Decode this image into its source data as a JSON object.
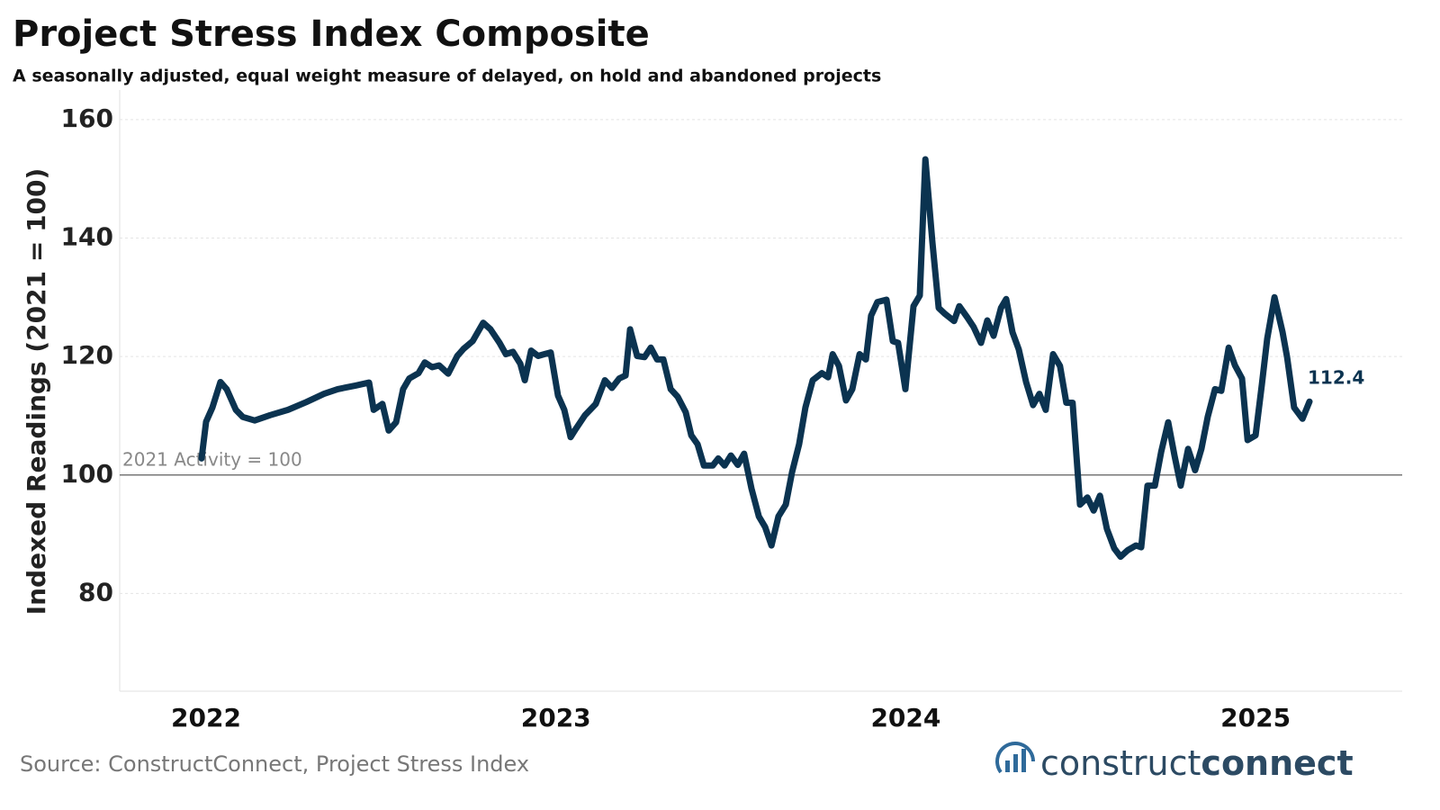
{
  "chart_data": {
    "type": "line",
    "title": "Project Stress Index Composite",
    "subtitle": "A seasonally adjusted, equal weight measure of delayed, on hold and abandoned projects",
    "y_label": "Indexed Readings (2021 = 100)",
    "source": "Source: ConstructConnect, Project Stress Index",
    "logo": {
      "light": "construct",
      "bold": "connect"
    },
    "reference_line": {
      "value": 100,
      "label": "2021 Activity = 100"
    },
    "xlim": [
      2021.753,
      2025.419
    ],
    "xticks": [
      2022,
      2023,
      2024,
      2025
    ],
    "ylim": [
      63.5,
      165
    ],
    "yticks": [
      80,
      100,
      120,
      140,
      160
    ],
    "grid": true,
    "series": [
      {
        "name": "Project Stress Index",
        "color": "#0b3350",
        "x": [
          2021.987,
          2022.0,
          2022.018,
          2022.041,
          2022.059,
          2022.085,
          2022.105,
          2022.139,
          2022.183,
          2022.234,
          2022.286,
          2022.337,
          2022.376,
          2022.427,
          2022.466,
          2022.479,
          2022.504,
          2022.522,
          2022.543,
          2022.563,
          2022.581,
          2022.607,
          2022.625,
          2022.646,
          2022.666,
          2022.692,
          2022.718,
          2022.736,
          2022.762,
          2022.792,
          2022.813,
          2022.839,
          2022.857,
          2022.877,
          2022.898,
          2022.911,
          2022.929,
          2022.949,
          2022.967,
          2022.985,
          2023.006,
          2023.024,
          2023.042,
          2023.057,
          2023.083,
          2023.114,
          2023.14,
          2023.16,
          2023.181,
          2023.199,
          2023.212,
          2023.232,
          2023.253,
          2023.271,
          2023.289,
          2023.307,
          2023.328,
          2023.348,
          2023.371,
          2023.387,
          2023.405,
          2023.423,
          2023.448,
          2023.464,
          2023.482,
          2023.5,
          2023.52,
          2023.538,
          2023.559,
          2023.58,
          2023.598,
          2023.616,
          2023.636,
          2023.657,
          2023.675,
          2023.695,
          2023.713,
          2023.734,
          2023.76,
          2023.778,
          2023.791,
          2023.809,
          2023.829,
          2023.847,
          2023.868,
          2023.886,
          2023.901,
          2023.919,
          2023.945,
          2023.963,
          2023.978,
          2023.999,
          2024.022,
          2024.04,
          2024.056,
          2024.076,
          2024.094,
          2024.112,
          2024.138,
          2024.153,
          2024.176,
          2024.194,
          2024.215,
          2024.233,
          2024.251,
          2024.272,
          2024.287,
          2024.305,
          2024.323,
          2024.344,
          2024.364,
          2024.382,
          2024.4,
          2024.421,
          2024.441,
          2024.459,
          2024.477,
          2024.498,
          2024.519,
          2024.537,
          2024.555,
          2024.575,
          2024.596,
          2024.614,
          2024.634,
          2024.658,
          2024.673,
          2024.691,
          2024.712,
          2024.73,
          2024.75,
          2024.768,
          2024.786,
          2024.807,
          2024.827,
          2024.845,
          2024.863,
          2024.884,
          2024.902,
          2024.923,
          2024.941,
          2024.961,
          2024.977,
          2025.0,
          2025.018,
          2025.033,
          2025.054,
          2025.077,
          2025.09,
          2025.11,
          2025.134,
          2025.154
        ],
        "values": [
          102.8,
          109,
          111.4,
          115.7,
          114.5,
          111,
          109.8,
          109.2,
          110.1,
          111,
          112.3,
          113.7,
          114.5,
          115.1,
          115.6,
          111,
          112,
          107.5,
          108.9,
          114.5,
          116.3,
          117.2,
          119,
          118.2,
          118.5,
          117.1,
          120.1,
          121.3,
          122.6,
          125.7,
          124.6,
          122.3,
          120.4,
          120.8,
          118.8,
          116,
          121,
          120.1,
          120.4,
          120.7,
          113.4,
          111,
          106.4,
          107.8,
          110.1,
          112,
          116,
          114.7,
          116.3,
          116.8,
          124.6,
          120.1,
          119.9,
          121.5,
          119.5,
          119.5,
          114.5,
          113.2,
          110.6,
          106.7,
          105.2,
          101.6,
          101.6,
          102.8,
          101.6,
          103.3,
          101.7,
          103.6,
          97.7,
          93,
          91.2,
          88.1,
          93,
          95,
          100.5,
          105.2,
          111.4,
          116,
          117.2,
          116.5,
          120.4,
          118.4,
          112.6,
          114.5,
          120.4,
          119.5,
          126.9,
          129.2,
          129.6,
          122.6,
          122.3,
          114.5,
          128.5,
          130.3,
          153.3,
          139.3,
          128.2,
          127.2,
          126,
          128.5,
          126.6,
          125,
          122.3,
          126.1,
          123.5,
          128.2,
          129.7,
          124.1,
          121.2,
          115.7,
          111.8,
          113.7,
          111,
          120.4,
          118.4,
          112.2,
          112.2,
          95,
          96.2,
          94,
          96.5,
          90.9,
          87.6,
          86.2,
          87.3,
          88.1,
          87.8,
          98.2,
          98.2,
          103.9,
          108.9,
          103.3,
          98.2,
          104.4,
          100.8,
          104.4,
          109.8,
          114.5,
          114.2,
          121.5,
          118.5,
          116.3,
          105.9,
          106.7,
          115.3,
          123,
          130,
          124.1,
          119.9,
          111.4,
          109.5,
          112.4
        ]
      }
    ]
  }
}
